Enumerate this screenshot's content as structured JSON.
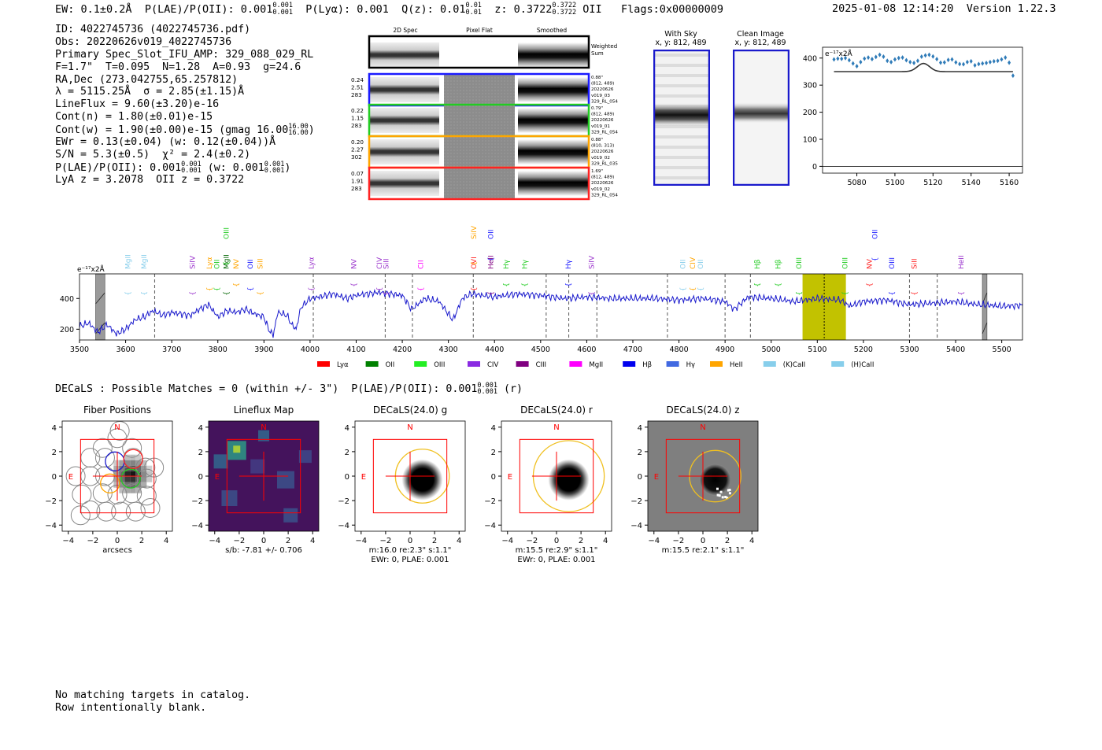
{
  "header": {
    "ew": "EW: 0.1±0.2Å",
    "plae": "P(LAE)/P(OII): 0.001",
    "plae_hi": "0.001",
    "plae_lo": "0.001",
    "plya": "P(Lyα): 0.001",
    "qz": "Q(z): 0.01",
    "qz_hi": "0.01",
    "qz_lo": "0.01",
    "z": "z: 0.3722",
    "z_hi": "0.3722",
    "z_lo": "0.3722",
    "z_line": "OII",
    "flags": "Flags:0x00000009",
    "timestamp": "2025-01-08 12:14:20",
    "version": "Version 1.22.3"
  },
  "info": {
    "lines": [
      "ID: 4022745736 (4022745736.pdf)",
      "Obs: 20220626v019_4022745736",
      "Primary Spec_Slot_IFU_AMP: 329_088_029_RL",
      "F=1.7\"  T=0.095  N=1.28  A=0.93  g=24.6",
      "RA,Dec (273.042755,65.257812)",
      "λ = 5115.25Å  σ = 2.85(±1.15)Å",
      "LineFlux = 9.60(±3.20)e-16",
      "Cont(n) = 1.80(±0.01)e-15"
    ],
    "contw": "Cont(w) = 1.90(±0.00)e-15 (gmag 16.00",
    "contw_hi": "16.00",
    "contw_lo": "16.00",
    "contw_end": ")",
    "ewr": "EWr = 0.13(±0.04) (w: 0.12(±0.04))Å",
    "sn": "S/N = 5.3(±0.5)  χ² = 2.4(±0.2)",
    "plae": "P(LAE)/P(OII): 0.001",
    "plae_hi": "0.001",
    "plae_lo": "0.001",
    "plae_w": "(w: 0.001",
    "plae_w_hi": "0.001",
    "plae_w_lo": "0.001",
    "plae_end": ")",
    "lyaz": "LyA z = 3.2078  OII z = 0.3722"
  },
  "spec2d": {
    "col_headers": [
      "2D Spec",
      "Pixel Flat",
      "Smoothed"
    ],
    "weighted_label": "Weighted Sum",
    "fibers": [
      {
        "color": "#1a1aff",
        "left": [
          "0.24",
          "2.51",
          "283"
        ],
        "right": [
          "0.88\"",
          "(812, 489)",
          "20220626",
          "v019_03",
          "329_RL_054"
        ]
      },
      {
        "color": "#22cc22",
        "left": [
          "0.22",
          "1.15",
          "283"
        ],
        "right": [
          "0.79\"",
          "(812, 489)",
          "20220626",
          "v019_01",
          "329_RL_054"
        ]
      },
      {
        "color": "#ffa500",
        "left": [
          "0.20",
          "2.27",
          "302"
        ],
        "right": [
          "0.88\"",
          "(810, 313)",
          "20220626",
          "v019_02",
          "329_RL_035"
        ]
      },
      {
        "color": "#ff2222",
        "left": [
          "0.07",
          "1.91",
          "283"
        ],
        "right": [
          "1.69\"",
          "(812, 489)",
          "20220626",
          "v019_02",
          "329_RL_054"
        ]
      }
    ]
  },
  "cutouts": {
    "with_sky": {
      "title": "With Sky",
      "coords": "x, y: 812, 489"
    },
    "clean": {
      "title": "Clean Image",
      "coords": "x, y: 812, 489"
    }
  },
  "chart_data": [
    {
      "type": "scatter",
      "name": "zoom-spectrum",
      "units_label": "e⁻¹⁷x2Å",
      "x": [
        5068,
        5070,
        5072,
        5074,
        5076,
        5078,
        5080,
        5082,
        5084,
        5086,
        5088,
        5090,
        5092,
        5094,
        5096,
        5098,
        5100,
        5102,
        5104,
        5106,
        5108,
        5110,
        5112,
        5114,
        5116,
        5118,
        5120,
        5122,
        5124,
        5126,
        5128,
        5130,
        5132,
        5134,
        5136,
        5138,
        5140,
        5142,
        5144,
        5146,
        5148,
        5150,
        5152,
        5154,
        5156,
        5158,
        5160,
        5162
      ],
      "y": [
        395,
        398,
        397,
        400,
        392,
        380,
        370,
        385,
        398,
        402,
        396,
        404,
        412,
        405,
        390,
        385,
        395,
        400,
        402,
        392,
        385,
        382,
        390,
        405,
        410,
        412,
        406,
        396,
        383,
        384,
        393,
        395,
        384,
        378,
        377,
        385,
        388,
        373,
        378,
        380,
        382,
        385,
        388,
        390,
        395,
        402,
        383,
        335
      ],
      "fit_line": {
        "baseline": 350,
        "peak_x": 5115,
        "amplitude": 30,
        "sigma": 3.2
      },
      "xticks": [
        5080,
        5100,
        5120,
        5140,
        5160
      ],
      "yticks": [
        0,
        100,
        200,
        300,
        400
      ],
      "xlim": [
        5062,
        5167
      ],
      "ylim": [
        -25,
        440
      ]
    },
    {
      "type": "line",
      "name": "full-spectrum",
      "units_label": "e⁻¹⁷x2Å",
      "x": [
        3500,
        3520,
        3540,
        3560,
        3580,
        3600,
        3620,
        3640,
        3660,
        3680,
        3700,
        3720,
        3740,
        3760,
        3780,
        3800,
        3820,
        3840,
        3860,
        3880,
        3900,
        3910,
        3920,
        3930,
        3940,
        3950,
        3960,
        3970,
        3980,
        4000,
        4020,
        4050,
        4080,
        4100,
        4150,
        4200,
        4220,
        4250,
        4280,
        4300,
        4310,
        4330,
        4350,
        4400,
        4450,
        4500,
        4550,
        4600,
        4650,
        4700,
        4750,
        4800,
        4850,
        4900,
        4920,
        4950,
        5000,
        5050,
        5100,
        5150,
        5170,
        5200,
        5250,
        5300,
        5350,
        5400,
        5450,
        5500,
        5545
      ],
      "y": [
        220,
        240,
        180,
        230,
        170,
        200,
        260,
        280,
        320,
        290,
        310,
        300,
        290,
        330,
        360,
        280,
        320,
        310,
        330,
        300,
        280,
        200,
        160,
        310,
        300,
        290,
        230,
        200,
        340,
        400,
        410,
        430,
        400,
        420,
        440,
        420,
        330,
        400,
        380,
        300,
        260,
        400,
        430,
        410,
        430,
        420,
        400,
        410,
        400,
        400,
        400,
        390,
        400,
        380,
        330,
        410,
        400,
        380,
        400,
        390,
        350,
        380,
        390,
        360,
        370,
        380,
        360,
        350,
        355
      ],
      "xticks": [
        3500,
        3600,
        3700,
        3800,
        3900,
        4000,
        4100,
        4200,
        4300,
        4400,
        4500,
        4600,
        4700,
        4800,
        4900,
        5000,
        5100,
        5200,
        5300,
        5400,
        5500
      ],
      "yticks": [
        200,
        400
      ],
      "xlim": [
        3500,
        5545
      ],
      "ylim": [
        130,
        560
      ],
      "highlight_range": [
        5068,
        5162
      ],
      "selected_line": 5115,
      "dashed_lines": [
        3663,
        4007,
        4163,
        4222,
        4354,
        4512,
        4561,
        4622,
        4775,
        4900,
        4955,
        5300,
        5360
      ],
      "masked_ranges": [
        [
          3535,
          3555
        ],
        [
          5458,
          5468
        ]
      ],
      "line_labels": [
        {
          "text": "MgII",
          "x": 3605,
          "color": "#87ceeb",
          "row": 2
        },
        {
          "text": "MgII",
          "x": 3640,
          "color": "#87ceeb",
          "row": 2
        },
        {
          "text": "SiIV",
          "x": 3745,
          "color": "#9932cc",
          "row": 2
        },
        {
          "text": "Lyα",
          "x": 3782,
          "color": "#ffa500",
          "row": 2
        },
        {
          "text": "OII",
          "x": 3798,
          "color": "#22cc22",
          "row": 2
        },
        {
          "text": "MgII",
          "x": 3818,
          "color": "#006400",
          "row": 2
        },
        {
          "text": "OIII",
          "x": 3818,
          "color": "#22cc22",
          "row": 0
        },
        {
          "text": "NV",
          "x": 3840,
          "color": "#ffa500",
          "row": 2
        },
        {
          "text": "OII",
          "x": 3870,
          "color": "#1a1aff",
          "row": 2
        },
        {
          "text": "SiII",
          "x": 3892,
          "color": "#ffa500",
          "row": 2
        },
        {
          "text": "Lyα",
          "x": 4003,
          "color": "#9932cc",
          "row": 2
        },
        {
          "text": "NV",
          "x": 4095,
          "color": "#9932cc",
          "row": 2
        },
        {
          "text": "CIV",
          "x": 4150,
          "color": "#9932cc",
          "row": 2
        },
        {
          "text": "SiII",
          "x": 4165,
          "color": "#9932cc",
          "row": 2
        },
        {
          "text": "CII",
          "x": 4240,
          "color": "#ff00ff",
          "row": 2
        },
        {
          "text": "OVI",
          "x": 4355,
          "color": "#ff2222",
          "row": 2
        },
        {
          "text": "SiIV",
          "x": 4355,
          "color": "#ffa500",
          "row": 0
        },
        {
          "text": "OII",
          "x": 4392,
          "color": "#1a1aff",
          "row": 0
        },
        {
          "text": "HeII",
          "x": 4392,
          "color": "#800080",
          "row": 2
        },
        {
          "text": "Hγ",
          "x": 4425,
          "color": "#22cc22",
          "row": 2
        },
        {
          "text": "Hγ",
          "x": 4465,
          "color": "#22cc22",
          "row": 2
        },
        {
          "text": "Hγ",
          "x": 4560,
          "color": "#1a1aff",
          "row": 2
        },
        {
          "text": "SiIV",
          "x": 4610,
          "color": "#9932cc",
          "row": 2
        },
        {
          "text": "OII",
          "x": 4808,
          "color": "#87ceeb",
          "row": 2
        },
        {
          "text": "CIV",
          "x": 4830,
          "color": "#ffa500",
          "row": 2
        },
        {
          "text": "OII",
          "x": 4847,
          "color": "#87ceeb",
          "row": 2
        },
        {
          "text": "Hβ",
          "x": 4970,
          "color": "#22cc22",
          "row": 2
        },
        {
          "text": "Hβ",
          "x": 5015,
          "color": "#22cc22",
          "row": 2
        },
        {
          "text": "OIII",
          "x": 5060,
          "color": "#22cc22",
          "row": 2
        },
        {
          "text": "OIII",
          "x": 5160,
          "color": "#22cc22",
          "row": 2
        },
        {
          "text": "NV",
          "x": 5213,
          "color": "#ff2222",
          "row": 2
        },
        {
          "text": "OII",
          "x": 5225,
          "color": "#1a1aff",
          "row": 0
        },
        {
          "text": "OIII",
          "x": 5262,
          "color": "#1a1aff",
          "row": 2
        },
        {
          "text": "SiII",
          "x": 5310,
          "color": "#ff2222",
          "row": 2
        },
        {
          "text": "HeII",
          "x": 5412,
          "color": "#9932cc",
          "row": 2
        }
      ],
      "legend": [
        {
          "label": "Lyα",
          "color": "#ff0000"
        },
        {
          "label": "OII",
          "color": "#008000"
        },
        {
          "label": "OIII",
          "color": "#22ee22"
        },
        {
          "label": "CIV",
          "color": "#8a2be2"
        },
        {
          "label": "CIII",
          "color": "#800080"
        },
        {
          "label": "MgII",
          "color": "#ff00ff"
        },
        {
          "label": "Hβ",
          "color": "#0000ee"
        },
        {
          "label": "Hγ",
          "color": "#4169e1"
        },
        {
          "label": "HeII",
          "color": "#ffa500"
        },
        {
          "label": "(K)CaII",
          "color": "#87ceeb"
        },
        {
          "label": "(H)CaII",
          "color": "#87ceeb"
        }
      ]
    }
  ],
  "decals_header": {
    "text": "DECaLS : Possible Matches = 0 (within +/- 3\")  P(LAE)/P(OII): 0.001",
    "hi": "0.001",
    "lo": "0.001",
    "end": "(r)"
  },
  "thumbnails": {
    "ticks": [
      "−4",
      "−2",
      "0",
      "2",
      "4"
    ],
    "north": "N",
    "east": "E",
    "panels": [
      {
        "title": "Fiber Positions",
        "caption1": "arcsecs",
        "caption2": ""
      },
      {
        "title": "Lineflux Map",
        "caption1": "s/b: -7.81 +/- 0.706",
        "caption2": ""
      },
      {
        "title": "DECaLS(24.0) g",
        "caption1": "m:16.0  re:2.3\"  s:1.1\"",
        "caption2": "EWr: 0, PLAE: 0.001"
      },
      {
        "title": "DECaLS(24.0) r",
        "caption1": "m:15.5  re:2.9\"  s:1.1\"",
        "caption2": "EWr: 0, PLAE: 0.001"
      },
      {
        "title": "DECaLS(24.0) z",
        "caption1": "m:15.5  re:2.1\"  s:1.1\"",
        "caption2": ""
      }
    ]
  },
  "footer": {
    "lines": [
      "No matching targets in catalog.",
      "Row intentionally blank."
    ]
  }
}
